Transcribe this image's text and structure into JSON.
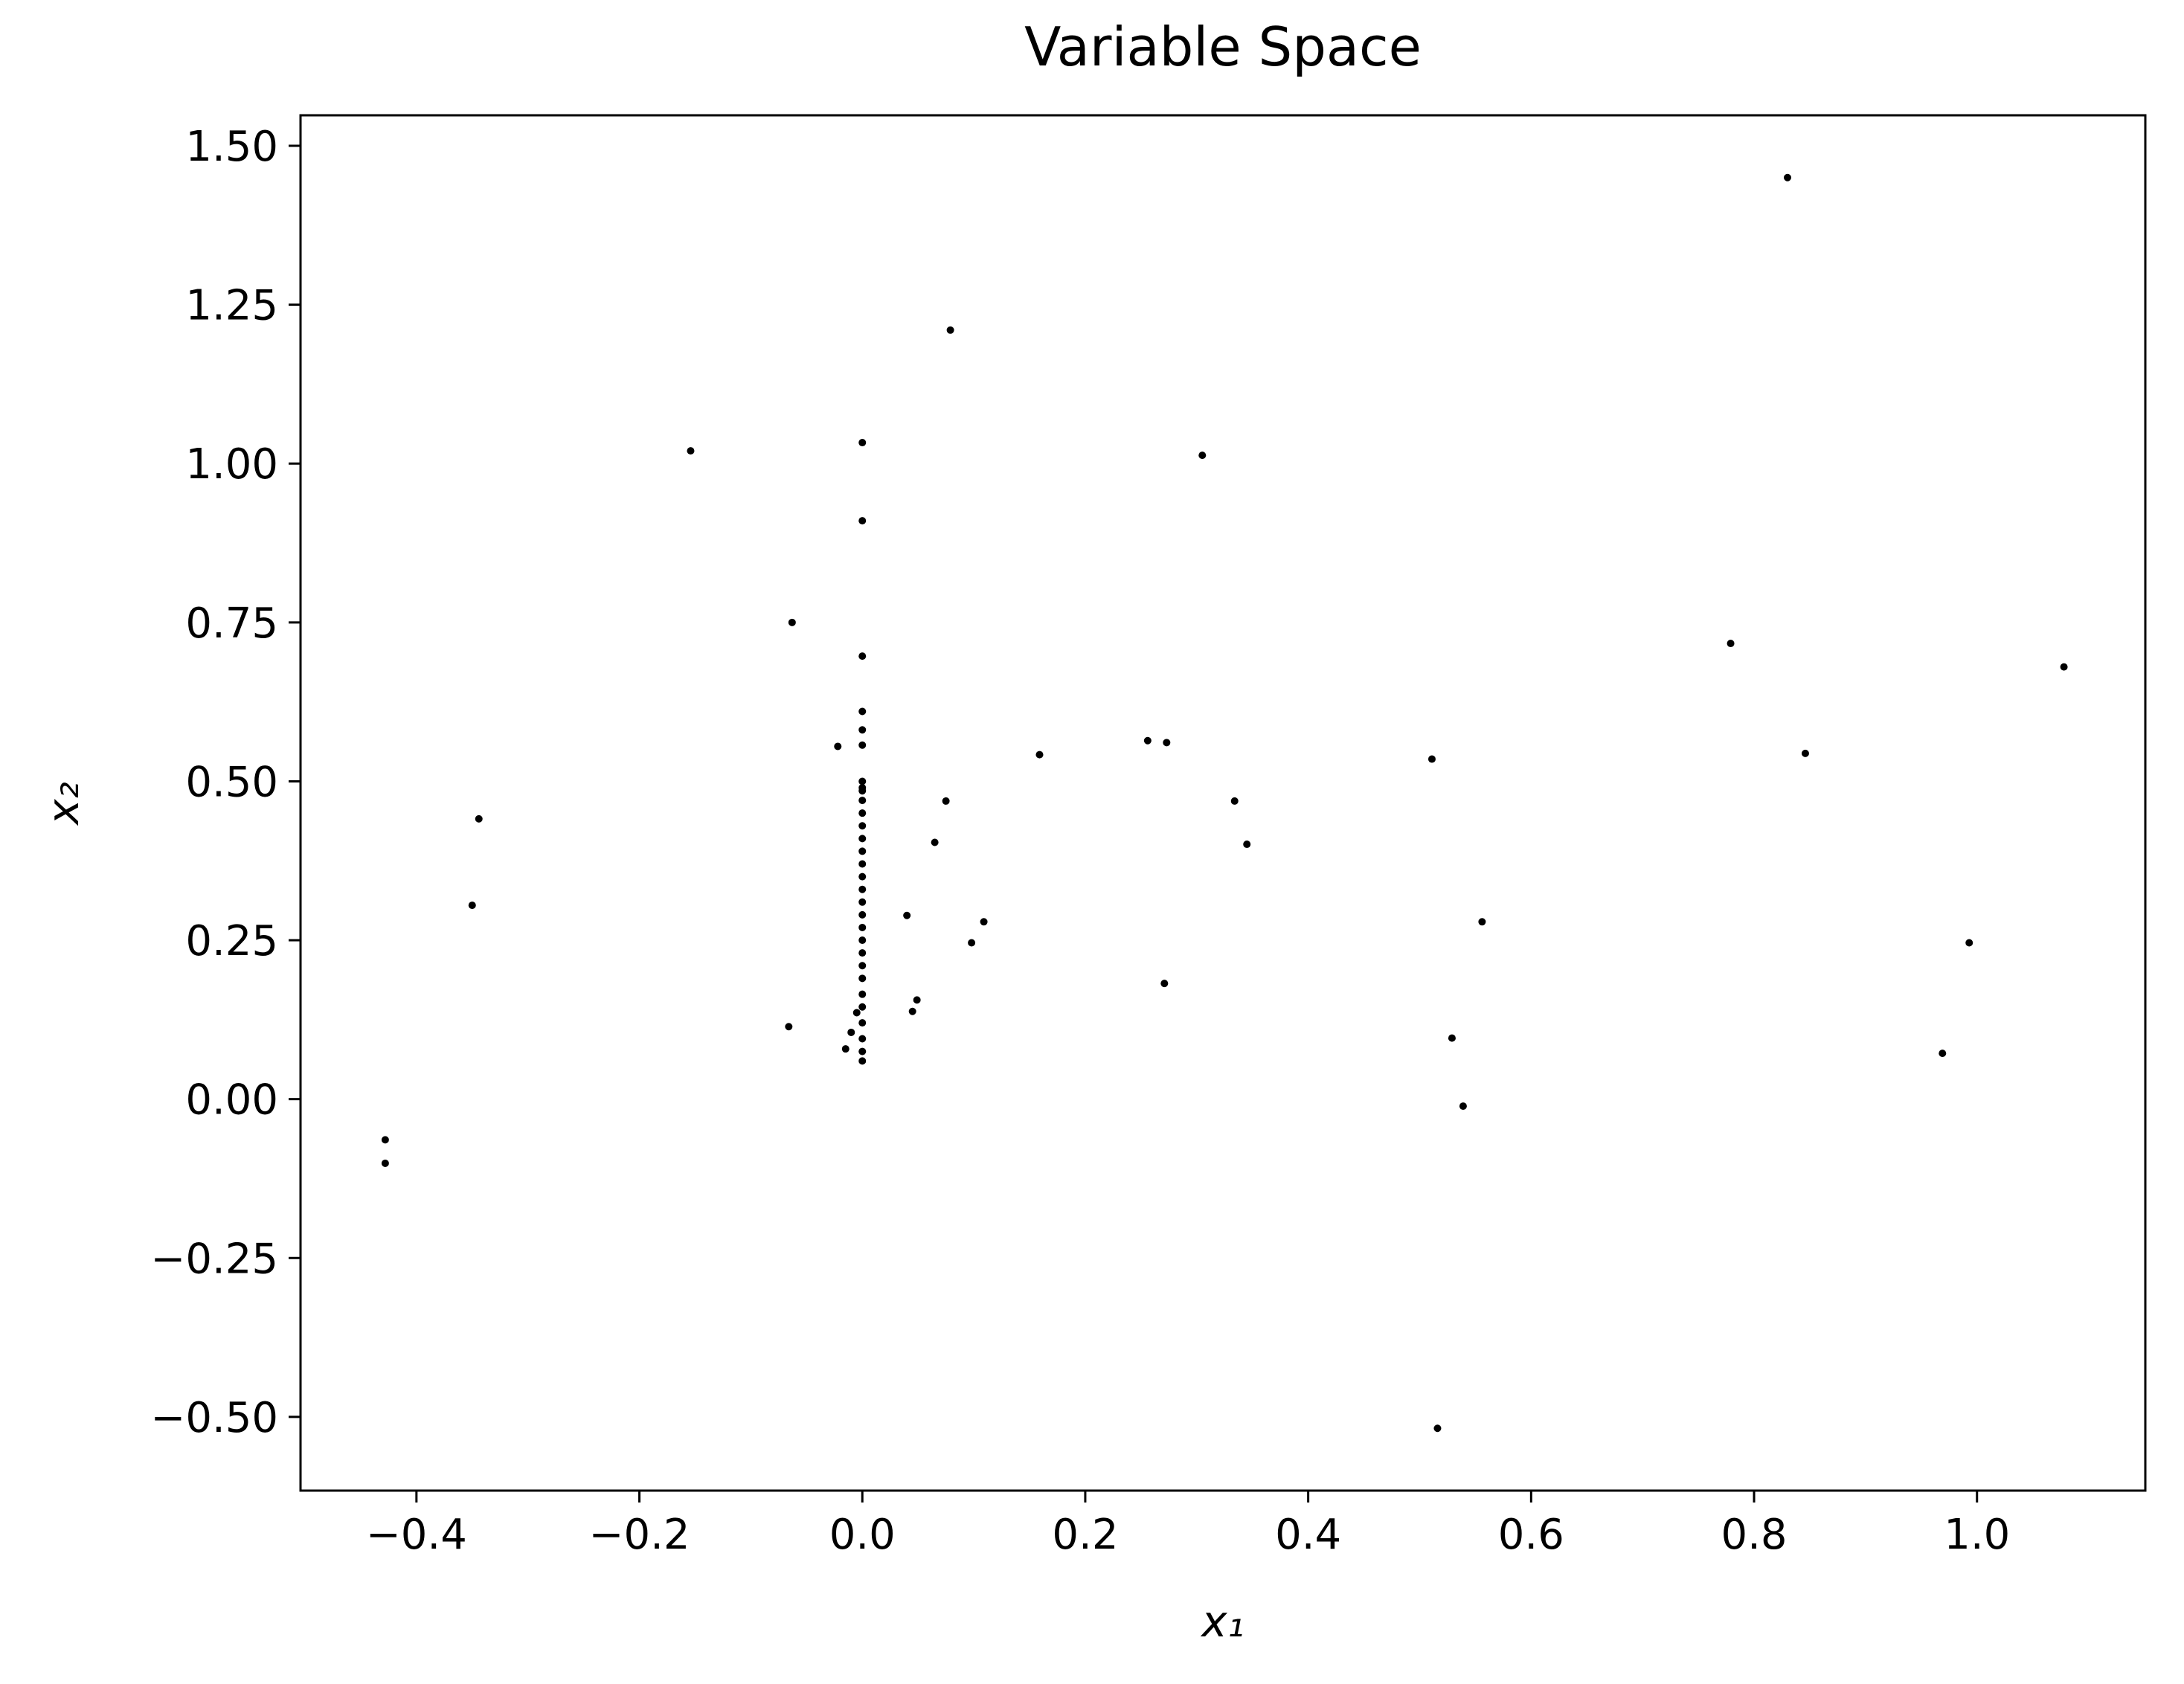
{
  "chart_data": {
    "type": "scatter",
    "title": "Variable Space",
    "xlabel": "x₁",
    "ylabel": "x₂",
    "xlim": [
      -0.504,
      1.151
    ],
    "ylim": [
      -0.616,
      1.548
    ],
    "xticks": [
      {
        "value": -0.4,
        "label": "−0.4"
      },
      {
        "value": -0.2,
        "label": "−0.2"
      },
      {
        "value": 0,
        "label": "0.0"
      },
      {
        "value": 0.2,
        "label": "0.2"
      },
      {
        "value": 0.4,
        "label": "0.4"
      },
      {
        "value": 0.6,
        "label": "0.6"
      },
      {
        "value": 0.8,
        "label": "0.8"
      },
      {
        "value": 1,
        "label": "1.0"
      }
    ],
    "yticks": [
      {
        "value": -0.5,
        "label": "−0.50"
      },
      {
        "value": -0.25,
        "label": "−0.25"
      },
      {
        "value": 0,
        "label": "0.00"
      },
      {
        "value": 0.25,
        "label": "0.25"
      },
      {
        "value": 0.5,
        "label": "0.50"
      },
      {
        "value": 0.75,
        "label": "0.75"
      },
      {
        "value": 1,
        "label": "1.00"
      },
      {
        "value": 1.25,
        "label": "1.25"
      },
      {
        "value": 1.5,
        "label": "1.50"
      }
    ],
    "grid": false,
    "series": [
      {
        "color": "#000000",
        "x": [
          0.83,
          0.079,
          -0.154,
          0.0,
          0.305,
          0.0,
          -0.063,
          0.0,
          0.779,
          1.078,
          0.0,
          0.0,
          0.0,
          -0.022,
          0.159,
          0.256,
          0.273,
          0.511,
          0.846,
          0.075,
          0.334,
          -0.344,
          0.065,
          0.345,
          -0.35,
          0.04,
          0.109,
          0.556,
          0.098,
          0.993,
          0.271,
          0.049,
          0.045,
          -0.066,
          0.529,
          -0.01,
          -0.005,
          -0.015,
          0.969,
          0.539,
          -0.428,
          -0.428,
          0.516,
          0.0,
          0.0,
          0.0,
          0.0,
          0.0,
          0.0,
          0.0,
          0.0,
          0.0,
          0.0,
          0.0,
          0.0,
          0.0,
          0.0,
          0.0,
          0.0,
          0.0,
          0.0,
          0.0,
          0.0,
          0.0,
          0.0,
          0.0,
          0.0
        ],
        "y": [
          1.45,
          1.21,
          1.02,
          1.033,
          1.013,
          0.91,
          0.75,
          0.697,
          0.717,
          0.68,
          0.61,
          0.581,
          0.557,
          0.555,
          0.542,
          0.564,
          0.561,
          0.535,
          0.544,
          0.469,
          0.469,
          0.441,
          0.404,
          0.401,
          0.305,
          0.289,
          0.279,
          0.279,
          0.246,
          0.246,
          0.182,
          0.156,
          0.138,
          0.114,
          0.096,
          0.105,
          0.136,
          0.079,
          0.072,
          -0.011,
          -0.064,
          -0.101,
          -0.518,
          0.06,
          0.075,
          0.095,
          0.12,
          0.145,
          0.165,
          0.19,
          0.21,
          0.23,
          0.25,
          0.27,
          0.29,
          0.31,
          0.33,
          0.35,
          0.37,
          0.39,
          0.41,
          0.43,
          0.45,
          0.47,
          0.49,
          0.5,
          0.485
        ]
      }
    ]
  }
}
